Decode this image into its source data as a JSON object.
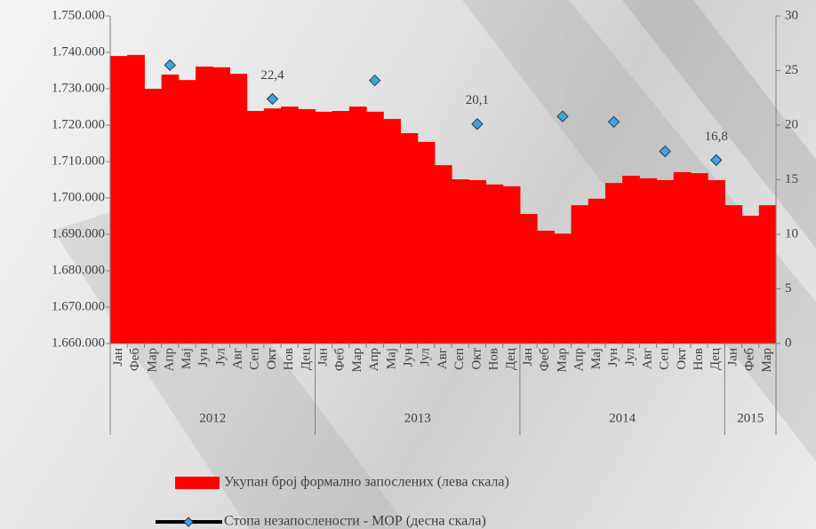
{
  "chart_data": {
    "type": "bar_line",
    "categories": [
      "Јан",
      "Феб",
      "Мар",
      "Апр",
      "Мај",
      "Јун",
      "Јул",
      "Авг",
      "Сеп",
      "Окт",
      "Нов",
      "Дец",
      "Јан",
      "Феб",
      "Мар",
      "Апр",
      "Мај",
      "Јун",
      "Јул",
      "Авг",
      "Сеп",
      "Окт",
      "Нов",
      "Дец",
      "Јан",
      "Феб",
      "Мар",
      "Апр",
      "Мај",
      "Јун",
      "Јул",
      "Авг",
      "Сеп",
      "Окт",
      "Нов",
      "Дец",
      "Јан",
      "Феб",
      "Мар"
    ],
    "year_groups": [
      "2012",
      "2013",
      "2014",
      "2015"
    ],
    "series": [
      {
        "name": "Укупан број формално запослених (лева скала)",
        "type": "bar",
        "color": "#ff0000",
        "values": [
          1739000,
          1739300,
          1730000,
          1733900,
          1732400,
          1736100,
          1735900,
          1734100,
          1723900,
          1724600,
          1725100,
          1724400,
          1723700,
          1723900,
          1725100,
          1723700,
          1721700,
          1717800,
          1715400,
          1709000,
          1705100,
          1704900,
          1703700,
          1703200,
          1695600,
          1691000,
          1690200,
          1698000,
          1699800,
          1704100,
          1706100,
          1705400,
          1704900,
          1707100,
          1706800,
          1704900,
          1698000,
          1695100,
          1698000
        ]
      },
      {
        "name": "Стопа незапослености - МОР (десна скала)",
        "type": "line",
        "axis": "y2",
        "color": "#41a5dc",
        "values": [
          null,
          null,
          null,
          25.5,
          null,
          null,
          null,
          null,
          null,
          22.4,
          null,
          null,
          null,
          null,
          null,
          24.1,
          null,
          null,
          null,
          null,
          null,
          20.1,
          null,
          null,
          null,
          null,
          20.8,
          null,
          null,
          20.3,
          null,
          null,
          17.6,
          null,
          null,
          16.8,
          null,
          null,
          null
        ],
        "value_labels": [
          null,
          null,
          null,
          null,
          null,
          null,
          null,
          null,
          null,
          "22,4",
          null,
          null,
          null,
          null,
          null,
          null,
          null,
          null,
          null,
          null,
          null,
          "20,1",
          null,
          null,
          null,
          null,
          null,
          null,
          null,
          null,
          null,
          null,
          null,
          null,
          null,
          "16,8",
          null,
          null,
          null
        ]
      }
    ],
    "ylim": [
      1660000,
      1750000
    ],
    "yticks": [
      {
        "value": 1660000,
        "label": "1.660.000"
      },
      {
        "value": 1670000,
        "label": "1.670.000"
      },
      {
        "value": 1680000,
        "label": "1.680.000"
      },
      {
        "value": 1690000,
        "label": "1.690.000"
      },
      {
        "value": 1700000,
        "label": "1.700.000"
      },
      {
        "value": 1710000,
        "label": "1.710.000"
      },
      {
        "value": 1720000,
        "label": "1.720.000"
      },
      {
        "value": 1730000,
        "label": "1.730.000"
      },
      {
        "value": 1740000,
        "label": "1.740.000"
      },
      {
        "value": 1750000,
        "label": "1.750.000"
      }
    ],
    "y2lim": [
      0,
      30
    ],
    "y2ticks": [
      0,
      5,
      10,
      15,
      20,
      25,
      30
    ]
  }
}
